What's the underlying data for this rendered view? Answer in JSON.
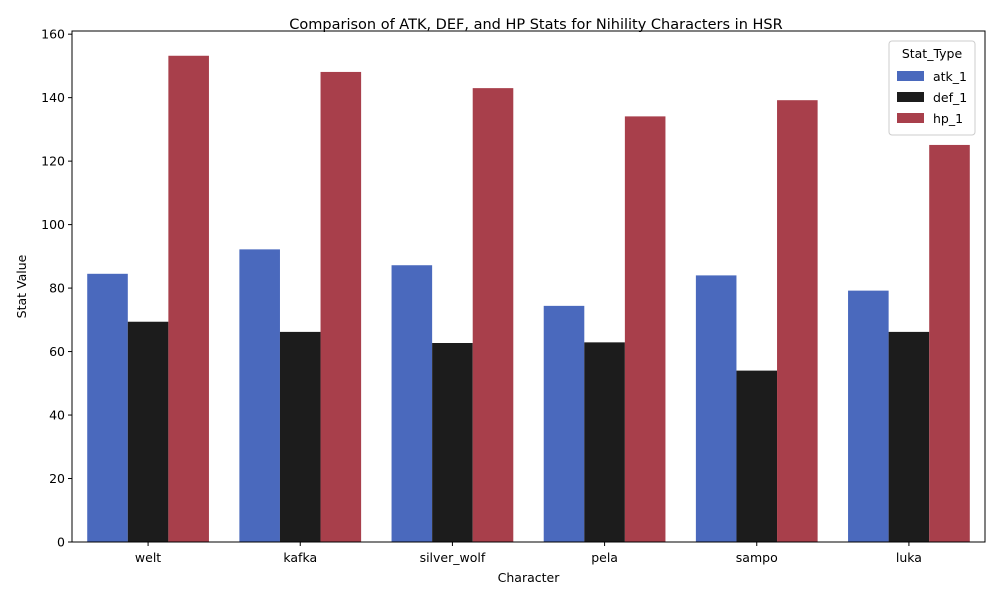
{
  "chart_data": {
    "type": "bar",
    "title": "Comparison of ATK, DEF, and HP Stats for Nihility Characters in HSR",
    "xlabel": "Character",
    "ylabel": "Stat Value",
    "categories": [
      "welt",
      "kafka",
      "silver_wolf",
      "pela",
      "sampo",
      "luka"
    ],
    "series": [
      {
        "name": "atk_1",
        "color": "#4a69bd",
        "values": [
          84.5,
          92.2,
          87.2,
          74.4,
          84.0,
          79.2
        ]
      },
      {
        "name": "def_1",
        "color": "#1c1c1c",
        "values": [
          69.4,
          66.2,
          62.7,
          62.9,
          54.0,
          66.2
        ]
      },
      {
        "name": "hp_1",
        "color": "#a83f4b",
        "values": [
          153.2,
          148.1,
          143.0,
          134.1,
          139.2,
          125.1
        ]
      }
    ],
    "ylim": [
      0,
      161
    ],
    "yticks": [
      0,
      20,
      40,
      60,
      80,
      100,
      120,
      140,
      160
    ],
    "grid": false,
    "legend": {
      "title": "Stat_Type",
      "placement": "top-right"
    }
  }
}
